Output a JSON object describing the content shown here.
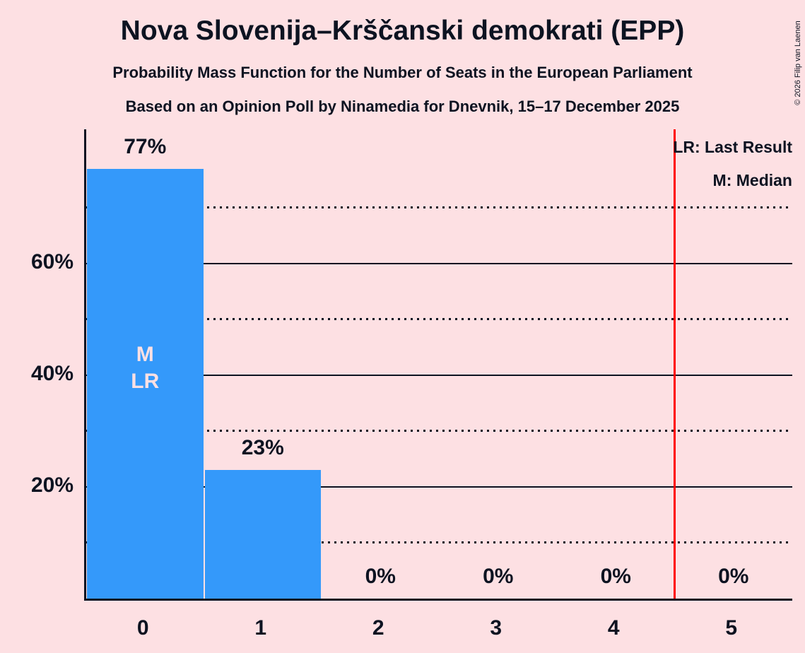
{
  "title": "Nova Slovenija–Krščanski demokrati (EPP)",
  "subtitles": [
    "Probability Mass Function for the Number of Seats in the European Parliament",
    "Based on an Opinion Poll by Ninamedia for Dnevnik, 15–17 December 2025"
  ],
  "copyright": "© 2026 Filip van Laenen",
  "legend": {
    "last_result": "LR: Last Result",
    "median": "M: Median"
  },
  "colors": {
    "background": "#fde0e3",
    "bar": "#3499fa",
    "text": "#0d1321",
    "bar_annotation": "#fde0e3",
    "red_line": "#ff0000"
  },
  "chart_data": {
    "type": "bar",
    "title": "Nova Slovenija–Krščanski demokrati (EPP)",
    "xlabel": "",
    "ylabel": "",
    "categories": [
      "0",
      "1",
      "2",
      "3",
      "4",
      "5"
    ],
    "values": [
      77,
      23,
      0,
      0,
      0,
      0
    ],
    "bar_labels": [
      "77%",
      "23%",
      "0%",
      "0%",
      "0%",
      "0%"
    ],
    "ylim": [
      0,
      84
    ],
    "yticks": [
      {
        "value": 20,
        "label": "20%"
      },
      {
        "value": 40,
        "label": "40%"
      },
      {
        "value": 60,
        "label": "60%"
      }
    ],
    "gridlines": {
      "solid": [
        20,
        40,
        60
      ],
      "dotted": [
        10,
        30,
        50,
        70
      ]
    },
    "legend_position": "top-right",
    "annotations": {
      "median_bar_index": 0,
      "last_result_bar_index": 0,
      "in_bar_lines": [
        "M",
        "LR"
      ],
      "red_line_x": 4.5
    }
  }
}
